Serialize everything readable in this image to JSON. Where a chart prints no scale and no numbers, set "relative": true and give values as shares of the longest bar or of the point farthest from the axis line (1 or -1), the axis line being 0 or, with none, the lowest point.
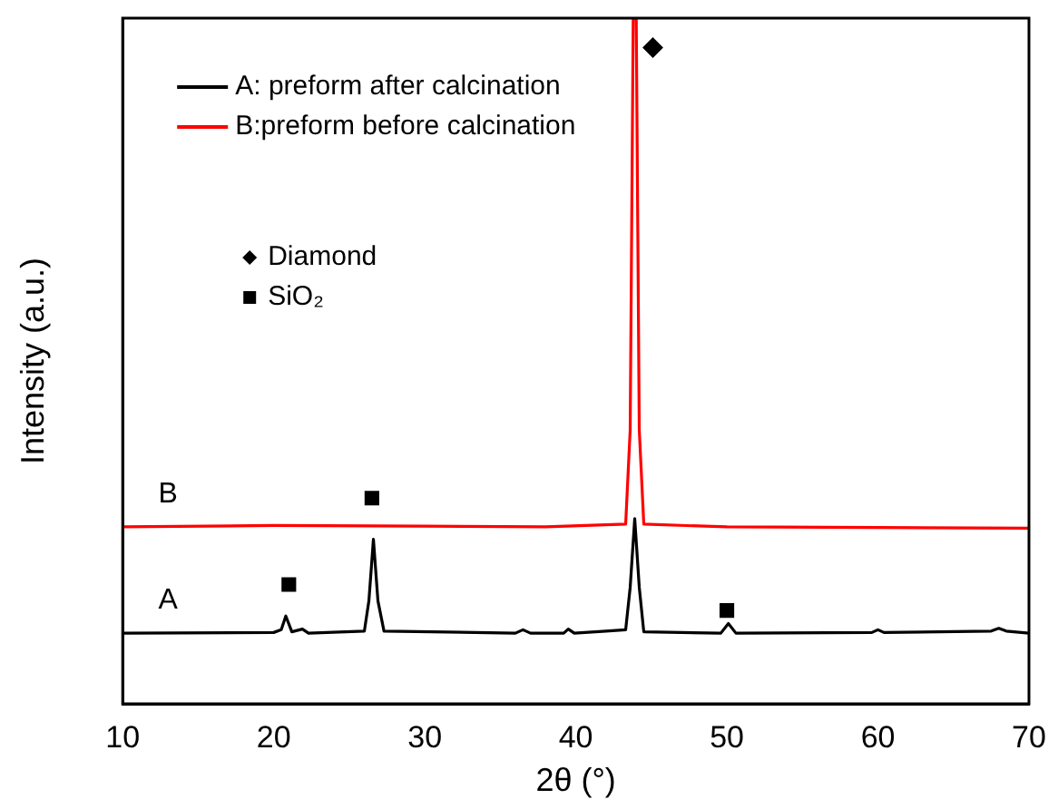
{
  "chart_data": {
    "type": "line",
    "xlabel": "2θ (°)",
    "ylabel": "Intensity (a.u.)",
    "relative": true,
    "xlim": [
      10,
      70
    ],
    "xticks": [
      10,
      20,
      30,
      40,
      50,
      60,
      70
    ],
    "grid": false,
    "legend": "top left",
    "line_style": "solid",
    "series": [
      {
        "name": "A: preform after calcination",
        "color": "#000000",
        "x": [
          10,
          20,
          20.5,
          20.8,
          21.2,
          21.9,
          22.3,
          26,
          26.3,
          26.6,
          26.9,
          27.3,
          36,
          36.5,
          37,
          39.2,
          39.5,
          39.9,
          42,
          43.3,
          43.6,
          43.9,
          44.2,
          44.5,
          49.6,
          50.1,
          50.6,
          59.6,
          60,
          60.4,
          67.5,
          68,
          68.5,
          70
        ],
        "values": [
          0.103,
          0.104,
          0.108,
          0.128,
          0.105,
          0.109,
          0.103,
          0.106,
          0.15,
          0.24,
          0.15,
          0.106,
          0.103,
          0.108,
          0.103,
          0.103,
          0.109,
          0.103,
          0.106,
          0.108,
          0.17,
          0.27,
          0.17,
          0.105,
          0.103,
          0.117,
          0.103,
          0.104,
          0.108,
          0.104,
          0.106,
          0.11,
          0.106,
          0.103
        ]
      },
      {
        "name": "B:preform before calcination",
        "color": "#ff0000",
        "x": [
          10,
          20,
          30,
          38,
          43.3,
          43.6,
          43.8,
          44,
          44.2,
          44.5,
          50,
          60,
          70
        ],
        "values": [
          0.258,
          0.26,
          0.259,
          0.258,
          0.262,
          0.4,
          1,
          1,
          0.4,
          0.262,
          0.258,
          0.257,
          0.256
        ]
      },
      {
        "name": "Diamond",
        "type": "scatter",
        "marker": "diamond",
        "color": "#000000",
        "x": [
          45.1
        ],
        "values": [
          0.957
        ]
      },
      {
        "name": "SiO₂",
        "type": "scatter",
        "marker": "square",
        "color": "#000000",
        "x": [
          21,
          26.5,
          50
        ],
        "values": [
          0.174,
          0.3,
          0.136
        ]
      }
    ],
    "annotations": [
      "A",
      "B"
    ]
  }
}
